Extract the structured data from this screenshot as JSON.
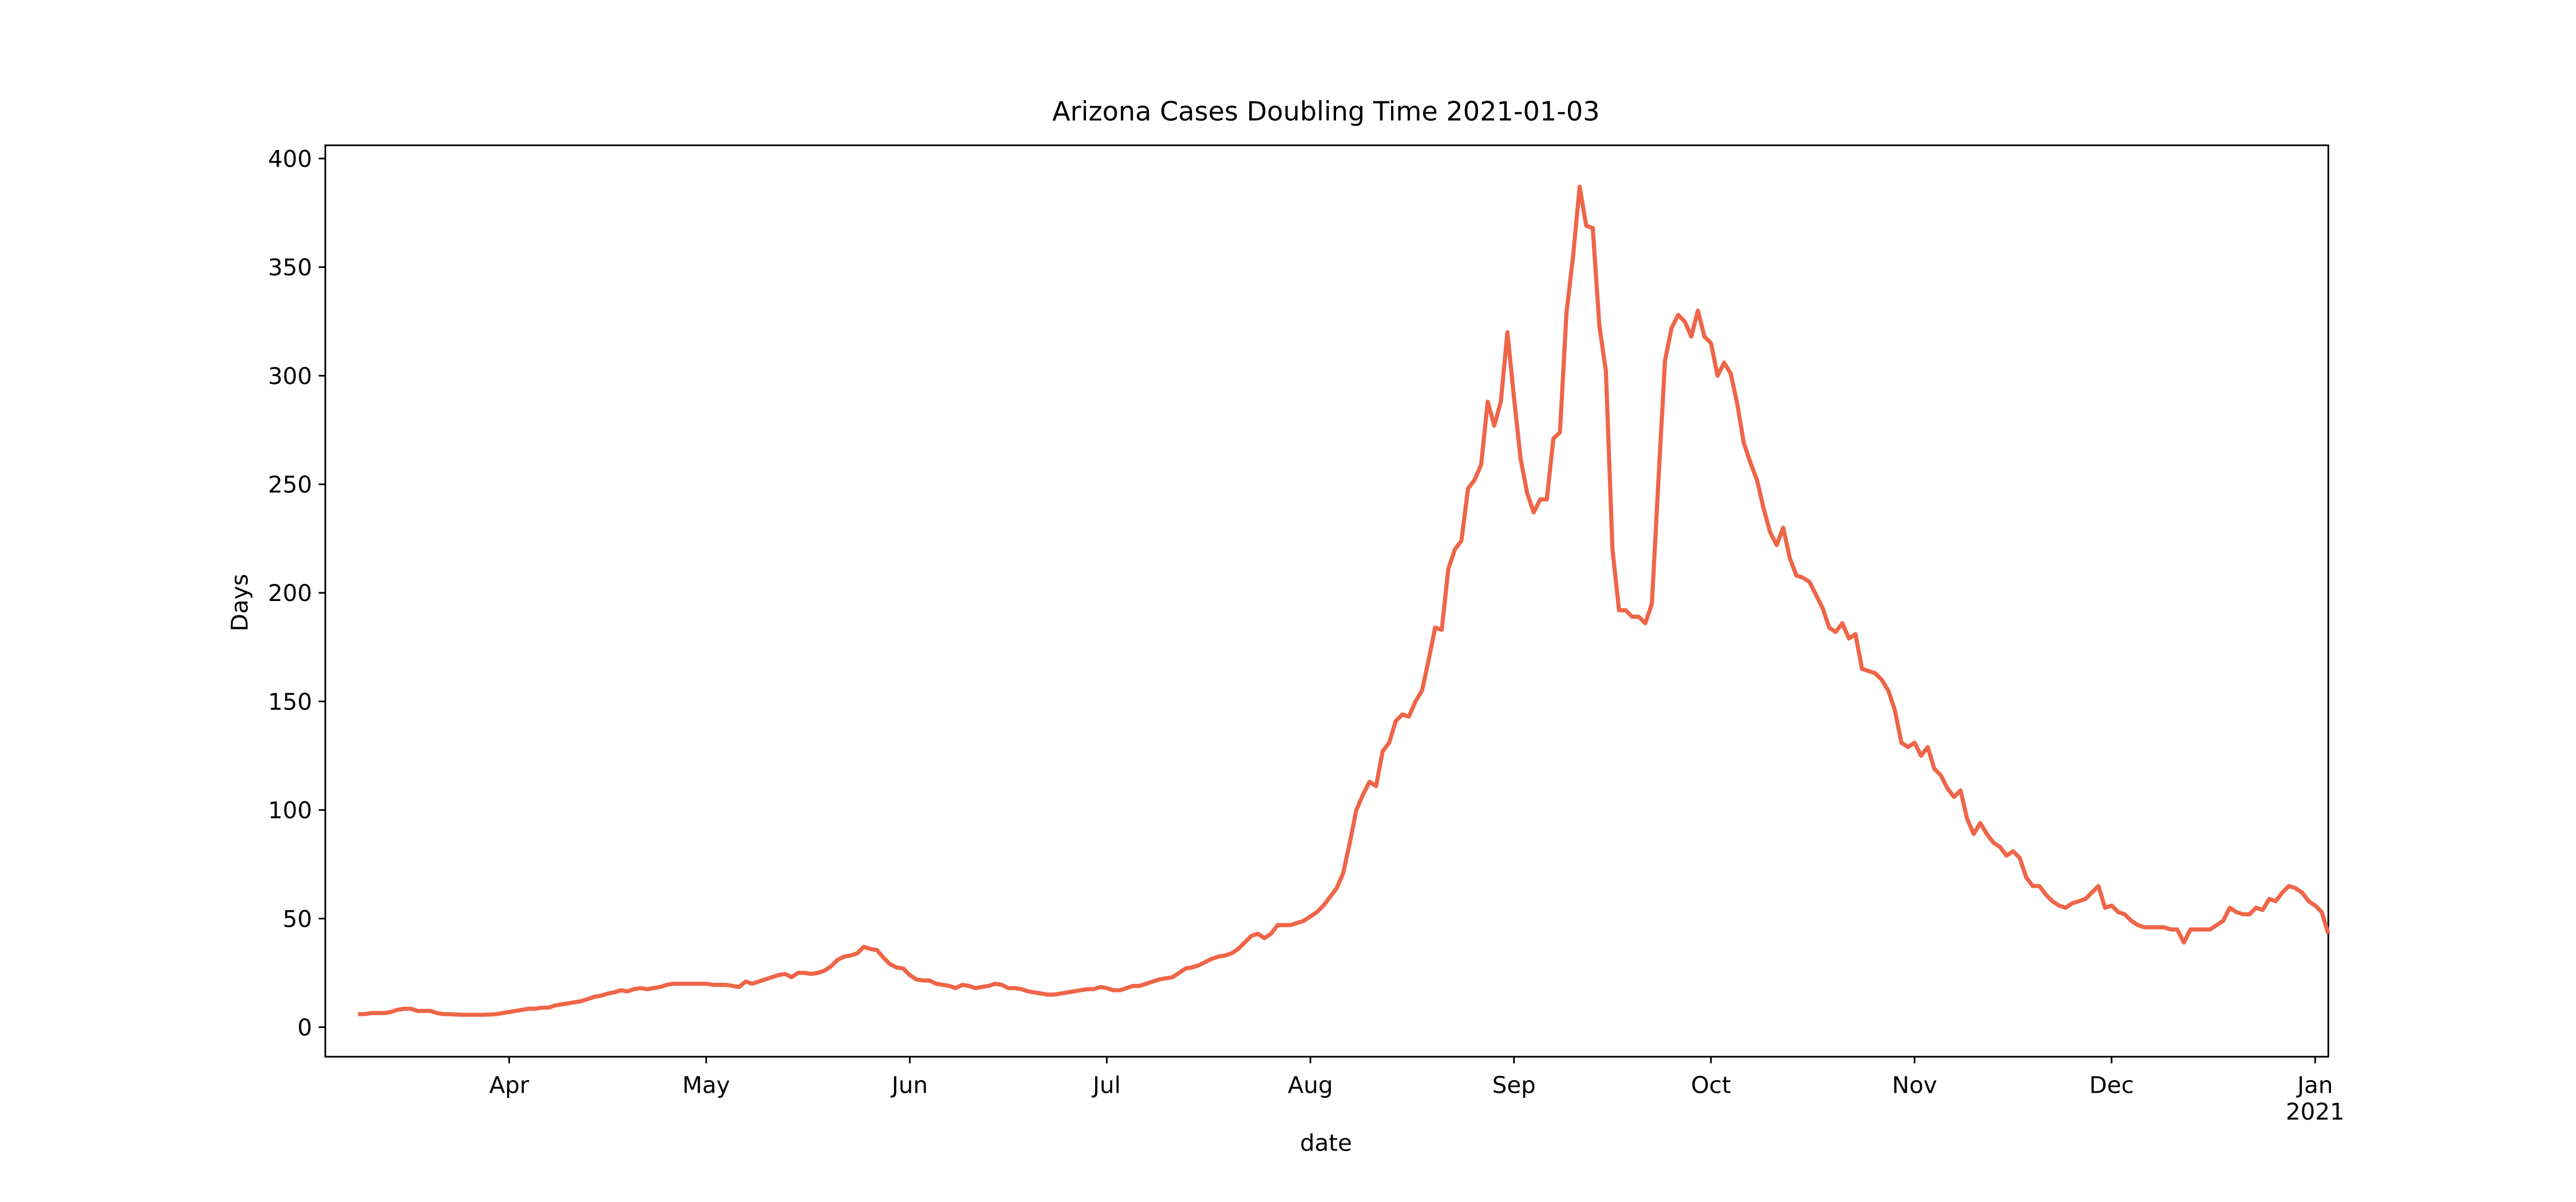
{
  "chart_data": {
    "type": "line",
    "title": "Arizona Cases Doubling Time 2021-01-03",
    "x_label": "date",
    "y_label": "Days",
    "categories": [
      null,
      null,
      null,
      null,
      null,
      null,
      null,
      null,
      null,
      null,
      null,
      null,
      null,
      null,
      null,
      null,
      null,
      null,
      null,
      null,
      null,
      null,
      null,
      null,
      null,
      null,
      null,
      null,
      "Apr",
      null,
      null,
      null,
      null,
      null,
      null,
      null,
      null,
      null,
      null,
      null,
      null,
      null,
      null,
      null,
      null,
      null,
      null,
      null,
      null,
      null,
      null,
      null,
      null,
      null,
      null,
      null,
      null,
      null,
      "May",
      null,
      null,
      null,
      null,
      null,
      null,
      null,
      null,
      null,
      null,
      null,
      null,
      null,
      null,
      null,
      null,
      null,
      null,
      null,
      null,
      null,
      null,
      null,
      null,
      null,
      null,
      null,
      null,
      null,
      null,
      "Jun",
      null,
      null,
      null,
      null,
      null,
      null,
      null,
      null,
      null,
      null,
      null,
      null,
      null,
      null,
      null,
      null,
      null,
      null,
      null,
      null,
      null,
      null,
      null,
      null,
      null,
      null,
      null,
      null,
      null,
      "Jul",
      null,
      null,
      null,
      null,
      null,
      null,
      null,
      null,
      null,
      null,
      null,
      null,
      null,
      null,
      null,
      null,
      null,
      null,
      null,
      null,
      null,
      null,
      null,
      null,
      null,
      null,
      null,
      null,
      null,
      null,
      "Aug",
      null,
      null,
      null,
      null,
      null,
      null,
      null,
      null,
      null,
      null,
      null,
      null,
      null,
      null,
      null,
      null,
      null,
      null,
      null,
      null,
      null,
      null,
      null,
      null,
      null,
      null,
      null,
      null,
      null,
      null,
      "Sep",
      null,
      null,
      null,
      null,
      null,
      null,
      null,
      null,
      null,
      null,
      null,
      null,
      null,
      null,
      null,
      null,
      null,
      null,
      null,
      null,
      null,
      null,
      null,
      null,
      null,
      null,
      null,
      null,
      null,
      "Oct",
      null,
      null,
      null,
      null,
      null,
      null,
      null,
      null,
      null,
      null,
      null,
      null,
      null,
      null,
      null,
      null,
      null,
      null,
      null,
      null,
      null,
      null,
      null,
      null,
      null,
      null,
      null,
      null,
      null,
      null,
      "Nov",
      null,
      null,
      null,
      null,
      null,
      null,
      null,
      null,
      null,
      null,
      null,
      null,
      null,
      null,
      null,
      null,
      null,
      null,
      null,
      null,
      null,
      null,
      null,
      null,
      null,
      null,
      null,
      null,
      null,
      "Dec",
      null,
      null,
      null,
      null,
      null,
      null,
      null,
      null,
      null,
      null,
      null,
      null,
      null,
      null,
      null,
      null,
      null,
      null,
      null,
      null,
      null,
      null,
      null,
      null,
      null,
      null,
      null,
      null,
      null,
      null,
      "Jan\n2021",
      null,
      null
    ],
    "series": [
      {
        "name": "Days",
        "color": "#ef6548",
        "values": [
          null,
          null,
          null,
          null,
          null,
          6,
          6,
          6.5,
          6.5,
          6.5,
          7,
          8,
          8.5,
          8.5,
          7.5,
          7.5,
          7.5,
          6.5,
          6,
          6,
          5.8,
          5.7,
          5.7,
          5.7,
          5.7,
          5.8,
          6,
          6.5,
          7,
          7.5,
          8,
          8.5,
          8.5,
          9,
          9,
          10,
          10.5,
          11,
          11.5,
          12,
          13,
          14,
          14.5,
          15.5,
          16,
          17,
          16.5,
          17.5,
          18,
          17.5,
          18,
          18.5,
          19.5,
          20,
          20,
          20,
          20,
          20,
          20,
          19.5,
          19.5,
          19.5,
          19,
          18.5,
          21,
          20,
          21,
          22,
          23,
          24,
          24.5,
          23,
          25,
          25,
          24.5,
          25,
          26,
          28,
          31,
          32.5,
          33,
          34,
          37,
          36,
          35.5,
          32,
          29,
          27.5,
          27,
          24,
          22,
          21.5,
          21.5,
          20,
          19.5,
          19,
          18,
          19.5,
          19,
          18,
          18.5,
          19,
          20,
          19.5,
          18,
          18,
          17.5,
          16.5,
          16,
          15.5,
          15,
          15,
          15.5,
          16,
          16.5,
          17,
          17.5,
          17.5,
          18.5,
          18,
          17,
          17,
          18,
          19,
          19,
          20,
          21,
          22,
          22.5,
          23,
          25,
          27,
          27.5,
          28.5,
          30,
          31.5,
          32.5,
          33,
          34,
          36,
          39,
          42,
          43,
          41,
          43,
          47,
          47,
          47,
          48,
          49,
          51,
          53,
          56,
          60,
          64,
          71,
          85,
          100,
          107,
          113,
          111,
          127,
          131,
          141,
          144,
          143,
          150,
          155,
          169,
          184,
          183,
          211,
          220,
          224,
          248,
          252,
          259,
          288,
          277,
          288,
          320,
          290,
          262,
          246,
          237,
          243,
          243,
          271,
          274,
          329,
          355,
          387,
          369,
          368,
          323,
          302,
          220,
          192,
          192,
          189,
          189,
          186,
          195,
          252,
          307,
          322,
          328,
          325,
          318,
          330,
          318,
          315,
          300,
          306,
          301,
          287,
          269,
          260,
          252,
          239,
          228,
          222,
          230,
          216,
          208,
          207,
          205,
          199,
          193,
          184,
          182,
          186,
          179,
          181,
          165,
          164,
          163,
          160,
          155,
          146,
          131,
          129,
          131,
          125,
          129,
          119,
          116,
          110,
          106,
          109,
          96,
          89,
          94,
          89,
          85,
          83,
          79,
          81,
          78,
          69,
          65,
          65,
          61,
          58,
          56,
          55,
          57,
          58,
          59,
          62,
          65,
          55,
          56,
          53,
          52,
          49,
          47,
          46,
          46,
          46,
          46,
          45,
          45,
          39,
          45,
          45,
          45,
          45,
          47,
          49,
          55,
          53,
          52,
          52,
          55,
          54,
          59,
          58,
          62,
          65,
          64,
          62,
          58,
          56,
          53,
          43
        ]
      }
    ],
    "ylim": [
      -13.6,
      406.1
    ],
    "yticks": [
      0,
      50,
      100,
      150,
      200,
      250,
      300,
      350,
      400
    ],
    "grid": false
  }
}
